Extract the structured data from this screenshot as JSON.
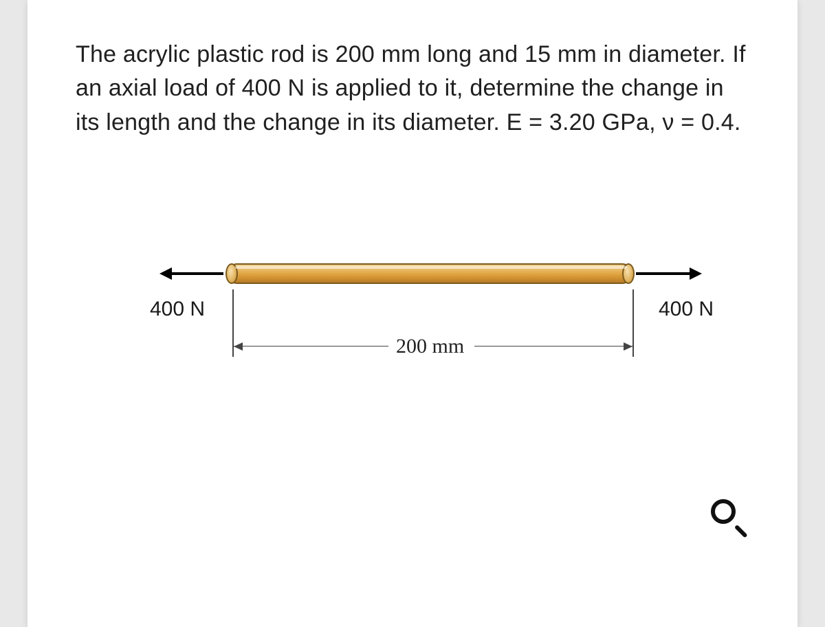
{
  "problem": {
    "text": "The acrylic plastic rod is 200 mm long and 15 mm in diameter. If an axial load of 400 N is applied to it, determine the change in its length and the change in its diameter. E = 3.20 GPa, ν = 0.4."
  },
  "figure": {
    "type": "diagram",
    "rod": {
      "length_mm": 200,
      "diameter_mm": 15,
      "fill_gradient": [
        "#f4d38f",
        "#e8b862",
        "#dfa23f",
        "#cc8e2f",
        "#b77c27"
      ],
      "outline_color": "#7a5a1c"
    },
    "forces": {
      "left": {
        "magnitude_N": 400,
        "label": "400 N",
        "direction": "left"
      },
      "right": {
        "magnitude_N": 400,
        "label": "400 N",
        "direction": "right"
      },
      "arrow_color": "#000000",
      "label_fontsize": 30,
      "label_color": "#1a1a1a"
    },
    "dimension": {
      "label": "200 mm",
      "line_color": "#444444",
      "label_fontsize": 30,
      "label_fontfamily": "Times New Roman"
    },
    "background_color": "#ffffff"
  },
  "material": {
    "E_GPa": 3.2,
    "poisson_ratio": 0.4
  },
  "icons": {
    "magnifier": "magnifier"
  },
  "page": {
    "card_bg": "#ffffff",
    "page_bg": "#e8e8e8",
    "text_color": "#202020",
    "body_fontsize": 34
  }
}
